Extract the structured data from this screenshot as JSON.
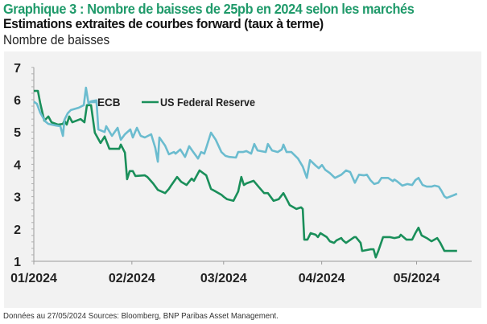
{
  "header": {
    "title": "Graphique 3 : Nombre de baisses de 25pb en 2024 selon les marchés",
    "subtitle": "Estimations extraites de courbes forward (taux à terme)",
    "unit_label": "Nombre de baisses"
  },
  "footer": {
    "source": "Données au 27/05/2024 Sources: Bloomberg, BNP Paribas Asset Management."
  },
  "colors": {
    "title": "#1f9a6a",
    "ecb": "#6bbccf",
    "fed": "#1a8f5a",
    "background": "#f2f2f2",
    "axis": "#9a9a9a"
  },
  "chart_data": {
    "type": "line",
    "title": "Graphique 3 : Nombre de baisses de 25pb en 2024 selon les marchés",
    "subtitle": "Estimations extraites de courbes forward (taux à terme)",
    "xlabel": "",
    "ylabel": "Nombre de baisses",
    "x_unit": "days since 01/01/2024",
    "xlim": [
      0,
      150
    ],
    "ylim": [
      1,
      7
    ],
    "yticks": [
      1,
      2,
      3,
      4,
      5,
      6,
      7
    ],
    "xticks": [
      {
        "day": 0,
        "label": "01/2024"
      },
      {
        "day": 31,
        "label": "02/2024"
      },
      {
        "day": 60,
        "label": "03/2024"
      },
      {
        "day": 91,
        "label": "04/2024"
      },
      {
        "day": 121,
        "label": "05/2024"
      }
    ],
    "grid": false,
    "legend": [
      {
        "name": "ECB",
        "position": "inline-top-left"
      },
      {
        "name": "US Federal Reserve",
        "position": "top"
      }
    ],
    "series": [
      {
        "name": "ECB",
        "color": "#6bbccf",
        "points": [
          [
            0,
            5.94
          ],
          [
            1,
            5.87
          ],
          [
            2,
            5.6
          ],
          [
            3.6,
            5.33
          ],
          [
            4.6,
            5.25
          ],
          [
            7.1,
            5.2
          ],
          [
            8.4,
            5.18
          ],
          [
            9.2,
            4.88
          ],
          [
            9.7,
            5.38
          ],
          [
            10.7,
            5.58
          ],
          [
            11.7,
            5.68
          ],
          [
            14.2,
            5.75
          ],
          [
            15.8,
            5.83
          ],
          [
            16.5,
            6.37
          ],
          [
            17.3,
            5.88
          ],
          [
            18.1,
            5.95
          ],
          [
            19.8,
            5.98
          ],
          [
            20.4,
            5.08
          ],
          [
            22.4,
            5.0
          ],
          [
            22.9,
            5.18
          ],
          [
            24.7,
            4.88
          ],
          [
            26.5,
            5.13
          ],
          [
            27.5,
            4.76
          ],
          [
            28.8,
            4.93
          ],
          [
            30.5,
            5.08
          ],
          [
            31.3,
            4.83
          ],
          [
            32.6,
            5.13
          ],
          [
            33.8,
            4.88
          ],
          [
            35.1,
            4.83
          ],
          [
            37.1,
            4.93
          ],
          [
            38.4,
            4.51
          ],
          [
            39.2,
            4.08
          ],
          [
            39.7,
            4.83
          ],
          [
            41.5,
            4.58
          ],
          [
            42.7,
            4.31
          ],
          [
            44.3,
            4.38
          ],
          [
            44.8,
            4.33
          ],
          [
            46.3,
            4.46
          ],
          [
            47.8,
            4.23
          ],
          [
            49.1,
            4.56
          ],
          [
            50.4,
            4.38
          ],
          [
            51.9,
            4.18
          ],
          [
            52.9,
            4.38
          ],
          [
            53.9,
            4.33
          ],
          [
            54.5,
            4.51
          ],
          [
            56.0,
            4.98
          ],
          [
            57.5,
            4.76
          ],
          [
            59.3,
            4.38
          ],
          [
            60.6,
            4.26
          ],
          [
            61.8,
            4.23
          ],
          [
            63.9,
            4.21
          ],
          [
            64.6,
            4.38
          ],
          [
            66.1,
            4.38
          ],
          [
            67.2,
            4.41
          ],
          [
            68.7,
            4.33
          ],
          [
            69.7,
            4.63
          ],
          [
            70.7,
            4.43
          ],
          [
            73.3,
            4.38
          ],
          [
            74.0,
            4.63
          ],
          [
            75.3,
            4.43
          ],
          [
            77.1,
            4.38
          ],
          [
            78.4,
            4.46
          ],
          [
            78.9,
            4.61
          ],
          [
            79.9,
            4.38
          ],
          [
            81.4,
            4.38
          ],
          [
            83.5,
            4.18
          ],
          [
            85.0,
            3.93
          ],
          [
            86.3,
            3.58
          ],
          [
            87.3,
            4.13
          ],
          [
            89.1,
            3.96
          ],
          [
            90.1,
            3.88
          ],
          [
            91.1,
            3.98
          ],
          [
            92.1,
            3.83
          ],
          [
            93.6,
            3.73
          ],
          [
            95.2,
            3.58
          ],
          [
            97.2,
            3.68
          ],
          [
            98.7,
            3.81
          ],
          [
            100.0,
            3.76
          ],
          [
            101.5,
            3.43
          ],
          [
            102.8,
            3.68
          ],
          [
            104.3,
            3.66
          ],
          [
            105.3,
            3.68
          ],
          [
            106.4,
            3.51
          ],
          [
            107.6,
            3.39
          ],
          [
            108.9,
            3.43
          ],
          [
            109.9,
            3.58
          ],
          [
            112.0,
            3.58
          ],
          [
            113.5,
            3.48
          ],
          [
            114.0,
            3.53
          ],
          [
            115.0,
            3.46
          ],
          [
            116.5,
            3.34
          ],
          [
            118.1,
            3.39
          ],
          [
            119.6,
            3.36
          ],
          [
            120.6,
            3.51
          ],
          [
            121.6,
            3.58
          ],
          [
            122.9,
            3.36
          ],
          [
            124.2,
            3.31
          ],
          [
            125.7,
            3.31
          ],
          [
            126.7,
            3.34
          ],
          [
            128.0,
            3.31
          ],
          [
            128.8,
            3.19
          ],
          [
            129.8,
            3.01
          ],
          [
            130.5,
            2.96
          ],
          [
            132.6,
            3.04
          ],
          [
            133.8,
            3.09
          ]
        ]
      },
      {
        "name": "US Federal Reserve",
        "color": "#1a8f5a",
        "points": [
          [
            0,
            6.27
          ],
          [
            1.3,
            6.27
          ],
          [
            2.0,
            5.9
          ],
          [
            3.3,
            5.35
          ],
          [
            4.6,
            5.48
          ],
          [
            5.6,
            5.3
          ],
          [
            7.6,
            5.23
          ],
          [
            9.2,
            5.25
          ],
          [
            9.7,
            5.35
          ],
          [
            10.4,
            5.23
          ],
          [
            11.2,
            5.48
          ],
          [
            12.2,
            5.3
          ],
          [
            14.8,
            5.4
          ],
          [
            16.0,
            5.3
          ],
          [
            16.8,
            5.83
          ],
          [
            18.1,
            5.83
          ],
          [
            19.3,
            4.98
          ],
          [
            21.1,
            4.66
          ],
          [
            22.4,
            4.86
          ],
          [
            23.9,
            4.48
          ],
          [
            27.0,
            4.48
          ],
          [
            27.5,
            4.61
          ],
          [
            28.8,
            4.36
          ],
          [
            29.5,
            3.54
          ],
          [
            30.3,
            3.79
          ],
          [
            31.3,
            3.79
          ],
          [
            32.1,
            3.64
          ],
          [
            35.1,
            3.66
          ],
          [
            35.9,
            3.61
          ],
          [
            37.7,
            3.41
          ],
          [
            39.2,
            3.21
          ],
          [
            41.5,
            3.11
          ],
          [
            42.7,
            3.24
          ],
          [
            43.5,
            3.36
          ],
          [
            45.3,
            3.61
          ],
          [
            46.6,
            3.46
          ],
          [
            48.3,
            3.36
          ],
          [
            49.9,
            3.56
          ],
          [
            50.6,
            3.49
          ],
          [
            52.4,
            3.81
          ],
          [
            54.5,
            3.66
          ],
          [
            56.0,
            3.24
          ],
          [
            57.5,
            3.16
          ],
          [
            59.3,
            3.06
          ],
          [
            60.1,
            2.99
          ],
          [
            61.1,
            2.92
          ],
          [
            63.1,
            2.87
          ],
          [
            64.6,
            3.16
          ],
          [
            65.6,
            3.61
          ],
          [
            66.4,
            3.36
          ],
          [
            67.2,
            3.41
          ],
          [
            69.5,
            3.49
          ],
          [
            71.2,
            3.29
          ],
          [
            72.8,
            3.11
          ],
          [
            74.0,
            3.11
          ],
          [
            75.8,
            2.87
          ],
          [
            77.4,
            2.92
          ],
          [
            78.9,
            3.11
          ],
          [
            80.2,
            2.87
          ],
          [
            80.9,
            2.74
          ],
          [
            83.0,
            2.62
          ],
          [
            84.5,
            2.67
          ],
          [
            85.0,
            2.62
          ],
          [
            85.5,
            1.67
          ],
          [
            86.5,
            1.67
          ],
          [
            87.5,
            1.87
          ],
          [
            89.1,
            1.82
          ],
          [
            89.8,
            1.75
          ],
          [
            90.6,
            1.87
          ],
          [
            92.6,
            1.75
          ],
          [
            93.6,
            1.62
          ],
          [
            94.9,
            1.57
          ],
          [
            95.7,
            1.65
          ],
          [
            97.2,
            1.72
          ],
          [
            97.7,
            1.65
          ],
          [
            98.7,
            1.57
          ],
          [
            101.3,
            1.75
          ],
          [
            101.8,
            1.75
          ],
          [
            103.3,
            1.57
          ],
          [
            103.8,
            1.32
          ],
          [
            106.4,
            1.37
          ],
          [
            107.4,
            1.37
          ],
          [
            108.1,
            1.12
          ],
          [
            108.9,
            1.32
          ],
          [
            110.4,
            1.75
          ],
          [
            112.5,
            1.75
          ],
          [
            114.0,
            1.72
          ],
          [
            115.5,
            1.75
          ],
          [
            116.0,
            1.82
          ],
          [
            117.8,
            1.67
          ],
          [
            119.6,
            1.67
          ],
          [
            120.6,
            1.87
          ],
          [
            121.6,
            2.04
          ],
          [
            122.6,
            1.8
          ],
          [
            124.2,
            1.72
          ],
          [
            125.7,
            1.62
          ],
          [
            127.5,
            1.72
          ],
          [
            128.5,
            1.57
          ],
          [
            129.8,
            1.32
          ],
          [
            131.8,
            1.32
          ],
          [
            133.8,
            1.32
          ]
        ]
      }
    ]
  }
}
